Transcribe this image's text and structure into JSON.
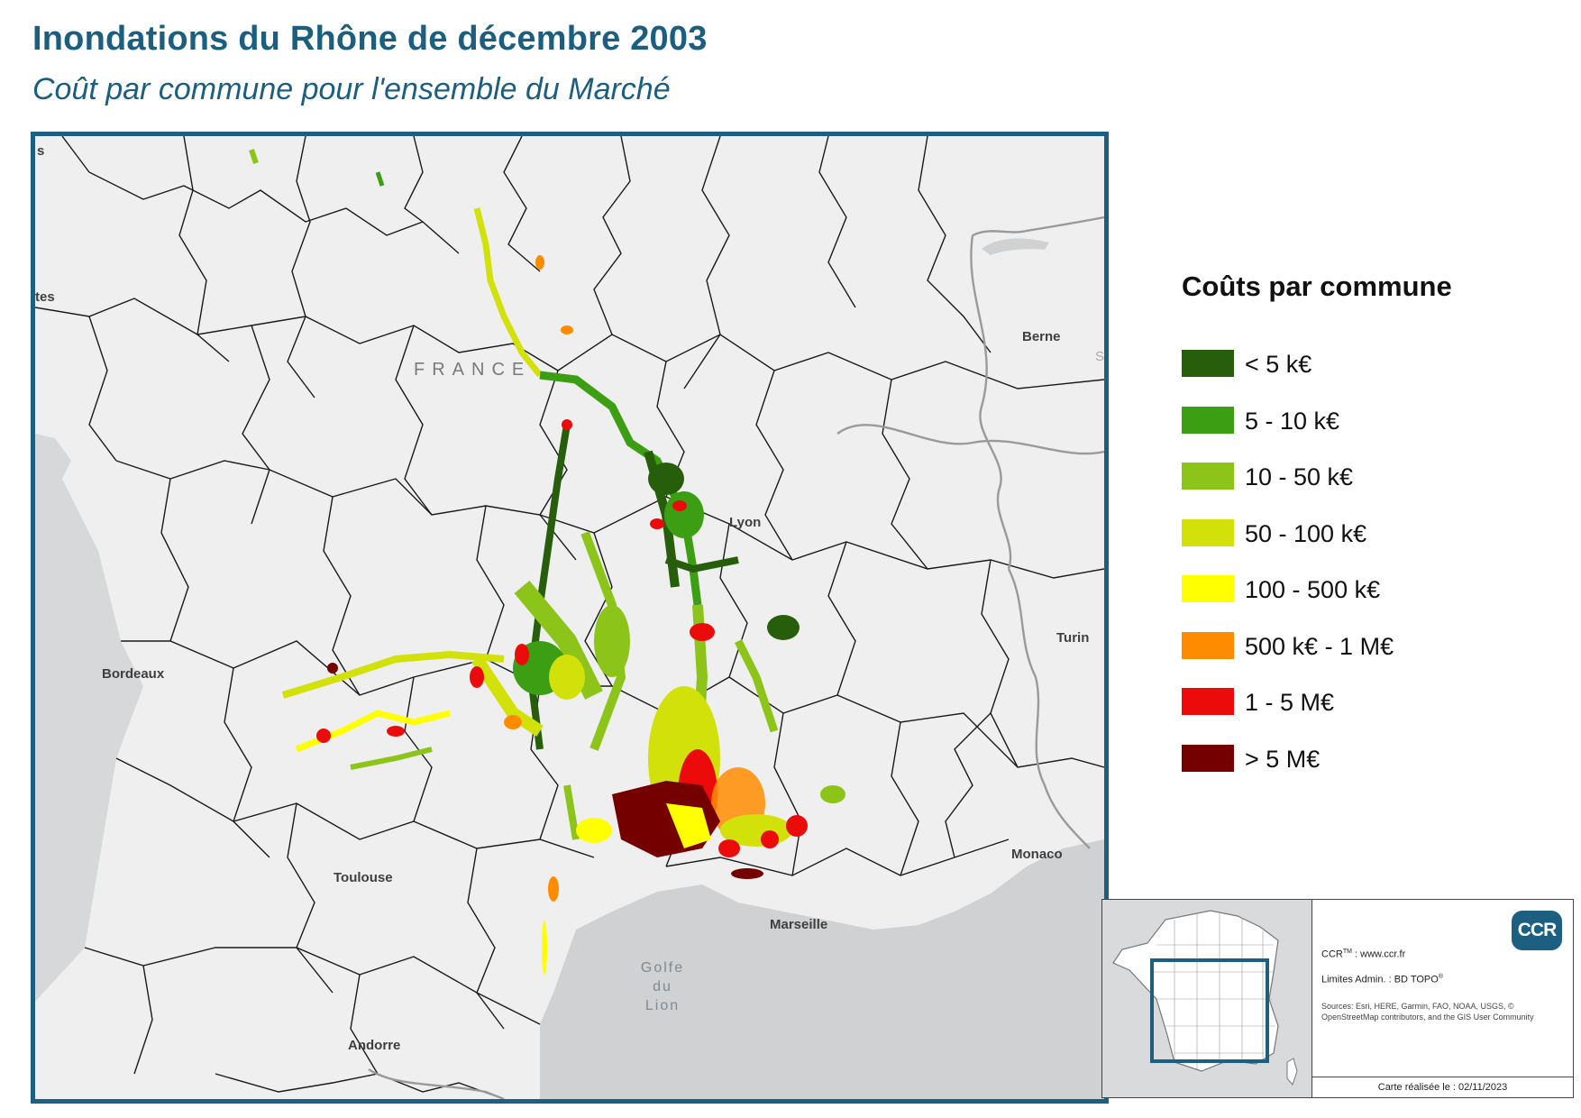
{
  "header": {
    "title": "Inondations du Rhône de décembre 2003",
    "subtitle": "Coût par commune pour l'ensemble du Marché"
  },
  "map": {
    "labels": {
      "country": "FRANCE",
      "bordeaux": "Bordeaux",
      "toulouse": "Toulouse",
      "lyon": "Lyon",
      "marseille": "Marseille",
      "monaco": "Monaco",
      "turin": "Turin",
      "berne": "Berne",
      "andorre": "Andorre",
      "edge_left_top": "s",
      "edge_left_mid": "tes",
      "edge_right": "S"
    },
    "sea_label": [
      "Golfe",
      "du",
      "Lion"
    ]
  },
  "legend": {
    "title": "Coûts par commune",
    "items": [
      {
        "label": "< 5 k€",
        "color": "#275e0c"
      },
      {
        "label": "5 - 10 k€",
        "color": "#3c9e12"
      },
      {
        "label": "10 - 50 k€",
        "color": "#8cc41a"
      },
      {
        "label": "50 - 100 k€",
        "color": "#d3e10b"
      },
      {
        "label": "100 - 500 k€",
        "color": "#ffff00"
      },
      {
        "label": "500 k€ - 1 M€",
        "color": "#ff8c00"
      },
      {
        "label": "1 - 5 M€",
        "color": "#ec0b0b"
      },
      {
        "label": "> 5 M€",
        "color": "#750000"
      }
    ]
  },
  "inset": {
    "logo": "CCR",
    "website_prefix": "CCR",
    "website_sup": "TM",
    "website": " : www.ccr.fr",
    "limits_prefix": "Limites Admin. : BD TOPO",
    "limits_sup": "®",
    "sources": "Sources: Esri, HERE, Garmin, FAO, NOAA, USGS, © OpenStreetMap contributors, and the GIS User Community",
    "date": "Carte réalisée le : 02/11/2023"
  }
}
